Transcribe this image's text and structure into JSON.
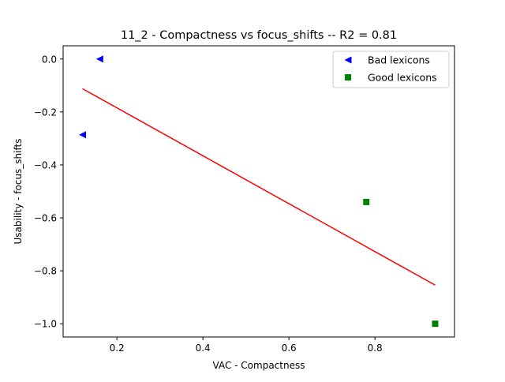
{
  "chart_data": {
    "type": "scatter",
    "title": "11_2 - Compactness  vs  focus_shifts -- R2 = 0.81",
    "xlabel": "VAC - Compactness",
    "ylabel": "Usability - focus_shifts",
    "xlim": [
      0.075,
      0.985
    ],
    "ylim": [
      -1.05,
      0.05
    ],
    "xticks": [
      0.2,
      0.4,
      0.6,
      0.8
    ],
    "xtick_labels": [
      "0.2",
      "0.4",
      "0.6",
      "0.8"
    ],
    "yticks": [
      0.0,
      -0.2,
      -0.4,
      -0.6,
      -0.8,
      -1.0
    ],
    "ytick_labels": [
      "0.0",
      "−0.2",
      "−0.4",
      "−0.6",
      "−0.8",
      "−1.0"
    ],
    "grid": false,
    "legend_position": "top-right",
    "series": [
      {
        "name": "Bad lexicons",
        "marker": "triangle-left",
        "color": "#0000ff",
        "points": [
          {
            "x": 0.16,
            "y": 0.0
          },
          {
            "x": 0.12,
            "y": -0.286
          }
        ]
      },
      {
        "name": "Good lexicons",
        "marker": "square",
        "color": "#008000",
        "points": [
          {
            "x": 0.78,
            "y": -0.54
          },
          {
            "x": 0.94,
            "y": -1.0
          }
        ]
      }
    ],
    "fit_line": {
      "color": "#ff0000",
      "points": [
        {
          "x": 0.12,
          "y": -0.112
        },
        {
          "x": 0.94,
          "y": -0.854
        }
      ]
    }
  }
}
